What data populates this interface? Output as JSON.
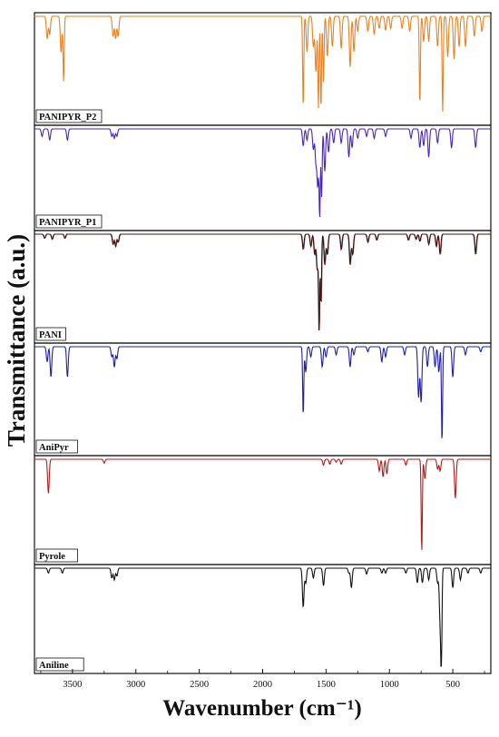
{
  "chart_data": {
    "type": "line",
    "layout": "stacked-panels",
    "title": "",
    "xlabel": "Wavenumber (cm⁻¹)",
    "ylabel": "Transmittance (a.u.)",
    "xlim": [
      3800,
      200
    ],
    "x_reversed": true,
    "xticks": [
      3500,
      3000,
      2500,
      2000,
      1500,
      1000,
      500
    ],
    "grid": false,
    "panels": [
      {
        "name": "PANIPYR_P2",
        "color": "#f07f1e",
        "peaks": [
          {
            "x": 3700,
            "depth": 0.22
          },
          {
            "x": 3680,
            "depth": 0.18
          },
          {
            "x": 3590,
            "depth": 0.36
          },
          {
            "x": 3570,
            "depth": 0.65
          },
          {
            "x": 3180,
            "depth": 0.2
          },
          {
            "x": 3160,
            "depth": 0.22
          },
          {
            "x": 3140,
            "depth": 0.2
          },
          {
            "x": 1680,
            "depth": 0.9
          },
          {
            "x": 1650,
            "depth": 0.35
          },
          {
            "x": 1600,
            "depth": 0.3
          },
          {
            "x": 1580,
            "depth": 0.55
          },
          {
            "x": 1560,
            "depth": 0.9
          },
          {
            "x": 1540,
            "depth": 0.92
          },
          {
            "x": 1520,
            "depth": 0.65
          },
          {
            "x": 1490,
            "depth": 0.4
          },
          {
            "x": 1450,
            "depth": 0.3
          },
          {
            "x": 1380,
            "depth": 0.32
          },
          {
            "x": 1310,
            "depth": 0.5
          },
          {
            "x": 1280,
            "depth": 0.35
          },
          {
            "x": 1250,
            "depth": 0.15
          },
          {
            "x": 1170,
            "depth": 0.15
          },
          {
            "x": 1120,
            "depth": 0.18
          },
          {
            "x": 1080,
            "depth": 0.12
          },
          {
            "x": 1030,
            "depth": 0.14
          },
          {
            "x": 990,
            "depth": 0.12
          },
          {
            "x": 900,
            "depth": 0.12
          },
          {
            "x": 840,
            "depth": 0.15
          },
          {
            "x": 760,
            "depth": 0.88
          },
          {
            "x": 730,
            "depth": 0.25
          },
          {
            "x": 690,
            "depth": 0.25
          },
          {
            "x": 620,
            "depth": 0.3
          },
          {
            "x": 580,
            "depth": 0.95
          },
          {
            "x": 540,
            "depth": 0.4
          },
          {
            "x": 490,
            "depth": 0.42
          },
          {
            "x": 450,
            "depth": 0.3
          },
          {
            "x": 400,
            "depth": 0.3
          },
          {
            "x": 330,
            "depth": 0.2
          },
          {
            "x": 270,
            "depth": 0.15
          }
        ]
      },
      {
        "name": "PANIPYR_P1",
        "color": "#4a1fd6",
        "peaks": [
          {
            "x": 3740,
            "depth": 0.08
          },
          {
            "x": 3680,
            "depth": 0.12
          },
          {
            "x": 3540,
            "depth": 0.12
          },
          {
            "x": 3190,
            "depth": 0.08
          },
          {
            "x": 3170,
            "depth": 0.1
          },
          {
            "x": 3150,
            "depth": 0.08
          },
          {
            "x": 1680,
            "depth": 0.18
          },
          {
            "x": 1650,
            "depth": 0.12
          },
          {
            "x": 1600,
            "depth": 0.22
          },
          {
            "x": 1580,
            "depth": 0.35
          },
          {
            "x": 1565,
            "depth": 0.6
          },
          {
            "x": 1550,
            "depth": 0.92
          },
          {
            "x": 1535,
            "depth": 0.72
          },
          {
            "x": 1510,
            "depth": 0.45
          },
          {
            "x": 1480,
            "depth": 0.25
          },
          {
            "x": 1440,
            "depth": 0.15
          },
          {
            "x": 1380,
            "depth": 0.15
          },
          {
            "x": 1320,
            "depth": 0.3
          },
          {
            "x": 1295,
            "depth": 0.2
          },
          {
            "x": 1250,
            "depth": 0.1
          },
          {
            "x": 1180,
            "depth": 0.08
          },
          {
            "x": 1120,
            "depth": 0.1
          },
          {
            "x": 1030,
            "depth": 0.08
          },
          {
            "x": 830,
            "depth": 0.1
          },
          {
            "x": 760,
            "depth": 0.2
          },
          {
            "x": 730,
            "depth": 0.18
          },
          {
            "x": 690,
            "depth": 0.3
          },
          {
            "x": 620,
            "depth": 0.15
          },
          {
            "x": 510,
            "depth": 0.2
          },
          {
            "x": 320,
            "depth": 0.2
          }
        ]
      },
      {
        "name": "PANI",
        "color": "#111111",
        "overlay_color": "#9b1b1b",
        "peaks": [
          {
            "x": 3720,
            "depth": 0.04
          },
          {
            "x": 3660,
            "depth": 0.05
          },
          {
            "x": 3560,
            "depth": 0.04
          },
          {
            "x": 3180,
            "depth": 0.1
          },
          {
            "x": 3160,
            "depth": 0.12
          },
          {
            "x": 3140,
            "depth": 0.08
          },
          {
            "x": 1680,
            "depth": 0.15
          },
          {
            "x": 1620,
            "depth": 0.12
          },
          {
            "x": 1590,
            "depth": 0.2
          },
          {
            "x": 1570,
            "depth": 0.35
          },
          {
            "x": 1555,
            "depth": 0.95
          },
          {
            "x": 1540,
            "depth": 0.7
          },
          {
            "x": 1510,
            "depth": 0.3
          },
          {
            "x": 1490,
            "depth": 0.2
          },
          {
            "x": 1380,
            "depth": 0.15
          },
          {
            "x": 1310,
            "depth": 0.3
          },
          {
            "x": 1290,
            "depth": 0.2
          },
          {
            "x": 1170,
            "depth": 0.08
          },
          {
            "x": 1100,
            "depth": 0.06
          },
          {
            "x": 850,
            "depth": 0.06
          },
          {
            "x": 790,
            "depth": 0.05
          },
          {
            "x": 760,
            "depth": 0.07
          },
          {
            "x": 690,
            "depth": 0.1
          },
          {
            "x": 630,
            "depth": 0.12
          },
          {
            "x": 600,
            "depth": 0.2
          },
          {
            "x": 320,
            "depth": 0.2
          }
        ]
      },
      {
        "name": "AniPyr",
        "color": "#1f1fa8",
        "peaks": [
          {
            "x": 3700,
            "depth": 0.15
          },
          {
            "x": 3670,
            "depth": 0.3
          },
          {
            "x": 3540,
            "depth": 0.3
          },
          {
            "x": 3190,
            "depth": 0.1
          },
          {
            "x": 3170,
            "depth": 0.2
          },
          {
            "x": 3150,
            "depth": 0.12
          },
          {
            "x": 1680,
            "depth": 0.68
          },
          {
            "x": 1660,
            "depth": 0.25
          },
          {
            "x": 1620,
            "depth": 0.1
          },
          {
            "x": 1530,
            "depth": 0.2
          },
          {
            "x": 1500,
            "depth": 0.1
          },
          {
            "x": 1420,
            "depth": 0.08
          },
          {
            "x": 1310,
            "depth": 0.2
          },
          {
            "x": 1280,
            "depth": 0.08
          },
          {
            "x": 1170,
            "depth": 0.05
          },
          {
            "x": 1060,
            "depth": 0.15
          },
          {
            "x": 1030,
            "depth": 0.1
          },
          {
            "x": 880,
            "depth": 0.08
          },
          {
            "x": 770,
            "depth": 0.5
          },
          {
            "x": 750,
            "depth": 0.55
          },
          {
            "x": 700,
            "depth": 0.2
          },
          {
            "x": 640,
            "depth": 0.2
          },
          {
            "x": 610,
            "depth": 0.25
          },
          {
            "x": 585,
            "depth": 0.95
          },
          {
            "x": 500,
            "depth": 0.3
          },
          {
            "x": 400,
            "depth": 0.08
          },
          {
            "x": 280,
            "depth": 0.05
          }
        ]
      },
      {
        "name": "Pyrole",
        "color": "#b81818",
        "peaks": [
          {
            "x": 3690,
            "depth": 0.35
          },
          {
            "x": 3250,
            "depth": 0.04
          },
          {
            "x": 1520,
            "depth": 0.06
          },
          {
            "x": 1470,
            "depth": 0.05
          },
          {
            "x": 1420,
            "depth": 0.03
          },
          {
            "x": 1380,
            "depth": 0.05
          },
          {
            "x": 1080,
            "depth": 0.12
          },
          {
            "x": 1050,
            "depth": 0.18
          },
          {
            "x": 1020,
            "depth": 0.15
          },
          {
            "x": 870,
            "depth": 0.06
          },
          {
            "x": 745,
            "depth": 0.95
          },
          {
            "x": 720,
            "depth": 0.2
          },
          {
            "x": 620,
            "depth": 0.1
          },
          {
            "x": 600,
            "depth": 0.12
          },
          {
            "x": 480,
            "depth": 0.4
          }
        ]
      },
      {
        "name": "Aniline",
        "color": "#111111",
        "peaks": [
          {
            "x": 3690,
            "depth": 0.05
          },
          {
            "x": 3580,
            "depth": 0.05
          },
          {
            "x": 3190,
            "depth": 0.1
          },
          {
            "x": 3170,
            "depth": 0.12
          },
          {
            "x": 3150,
            "depth": 0.08
          },
          {
            "x": 1680,
            "depth": 0.4
          },
          {
            "x": 1660,
            "depth": 0.15
          },
          {
            "x": 1600,
            "depth": 0.1
          },
          {
            "x": 1520,
            "depth": 0.18
          },
          {
            "x": 1320,
            "depth": 0.05
          },
          {
            "x": 1300,
            "depth": 0.2
          },
          {
            "x": 1180,
            "depth": 0.06
          },
          {
            "x": 1060,
            "depth": 0.05
          },
          {
            "x": 1030,
            "depth": 0.05
          },
          {
            "x": 870,
            "depth": 0.05
          },
          {
            "x": 780,
            "depth": 0.15
          },
          {
            "x": 740,
            "depth": 0.15
          },
          {
            "x": 690,
            "depth": 0.12
          },
          {
            "x": 620,
            "depth": 0.15
          },
          {
            "x": 600,
            "depth": 0.55
          },
          {
            "x": 590,
            "depth": 0.95
          },
          {
            "x": 500,
            "depth": 0.2
          },
          {
            "x": 440,
            "depth": 0.12
          },
          {
            "x": 380,
            "depth": 0.05
          },
          {
            "x": 280,
            "depth": 0.05
          }
        ]
      }
    ]
  }
}
